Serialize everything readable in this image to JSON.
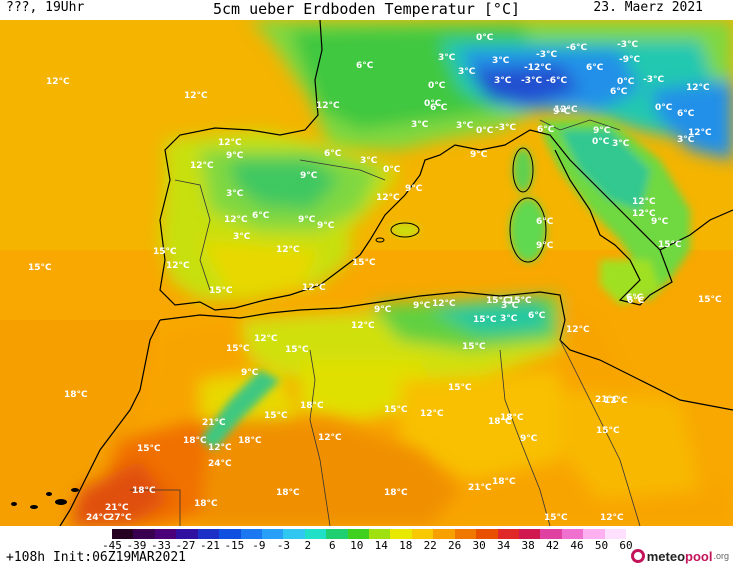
{
  "header": {
    "left": "???, 19Uhr",
    "title": "5cm ueber Erdboden Temperatur [°C]",
    "date": "23. Maerz 2021"
  },
  "footer": {
    "init": "+108h Init:06Z19MAR2021",
    "logo_main": "meteo",
    "logo_accent": "pool",
    "logo_suffix": ".org"
  },
  "scale": {
    "ticks": [
      "-45",
      "-39",
      "-33",
      "-27",
      "-21",
      "-15",
      "-9",
      "-3",
      "2",
      "6",
      "10",
      "14",
      "18",
      "22",
      "26",
      "30",
      "34",
      "38",
      "42",
      "46",
      "50",
      "60"
    ],
    "colors": [
      "#250020",
      "#3a0050",
      "#4a0078",
      "#3010a0",
      "#1c30c8",
      "#1050e0",
      "#1c78f0",
      "#28a0f8",
      "#30c8f0",
      "#20e0c8",
      "#20d070",
      "#40d020",
      "#a0e010",
      "#e8e800",
      "#f8c800",
      "#f8a000",
      "#f07800",
      "#e85000",
      "#e02828",
      "#d01850",
      "#e040a0",
      "#f070d0",
      "#ffb0f0",
      "#ffe0ff"
    ]
  },
  "labels": [
    {
      "t": "9°C"
    },
    {
      "t": "6°C"
    },
    {
      "t": "12°C"
    },
    {
      "t": "12°C"
    },
    {
      "t": "12°C"
    },
    {
      "t": "3°C"
    },
    {
      "t": "0°C"
    },
    {
      "t": "3°C"
    },
    {
      "t": "3°C"
    },
    {
      "t": "0°C"
    },
    {
      "t": "-3°C"
    },
    {
      "t": "-6°C"
    },
    {
      "t": "-3°C"
    },
    {
      "t": "-9°C"
    },
    {
      "t": "6°C"
    },
    {
      "t": "-12°C"
    },
    {
      "t": "3°C"
    },
    {
      "t": "-3°C"
    },
    {
      "t": "-6°C"
    },
    {
      "t": "0°C"
    },
    {
      "t": "-3°C"
    },
    {
      "t": "3°C"
    },
    {
      "t": "0°C"
    },
    {
      "t": "6°C"
    },
    {
      "t": "0°C"
    },
    {
      "t": "-3°C"
    },
    {
      "t": "3°C"
    },
    {
      "t": "6°C"
    },
    {
      "t": "0°C"
    },
    {
      "t": "3°C"
    },
    {
      "t": "3°C"
    },
    {
      "t": "9°C"
    },
    {
      "t": "6°C"
    },
    {
      "t": "0°C"
    },
    {
      "t": "6°C"
    },
    {
      "t": "12°C"
    },
    {
      "t": "9°C"
    },
    {
      "t": "12°C"
    },
    {
      "t": "9°C"
    },
    {
      "t": "6°C"
    },
    {
      "t": "3°C"
    },
    {
      "t": "0°C"
    },
    {
      "t": "9°C"
    },
    {
      "t": "12°C"
    },
    {
      "t": "9°C"
    },
    {
      "t": "12°C"
    },
    {
      "t": "3°C"
    },
    {
      "t": "9°C"
    },
    {
      "t": "12°C"
    },
    {
      "t": "6°C"
    },
    {
      "t": "9°C"
    },
    {
      "t": "3°C"
    },
    {
      "t": "6°C"
    },
    {
      "t": "12°C"
    },
    {
      "t": "9°C"
    },
    {
      "t": "12°C"
    },
    {
      "t": "12°C"
    },
    {
      "t": "15°C"
    },
    {
      "t": "15°C"
    },
    {
      "t": "15°C"
    },
    {
      "t": "12°C"
    },
    {
      "t": "12°C"
    },
    {
      "t": "15°C"
    },
    {
      "t": "9°C"
    },
    {
      "t": "12°C"
    },
    {
      "t": "15°C"
    },
    {
      "t": "6°C"
    },
    {
      "t": "9°C"
    },
    {
      "t": "12°C"
    },
    {
      "t": "6°C"
    },
    {
      "t": "15°C"
    },
    {
      "t": "9°C"
    },
    {
      "t": "3°C"
    },
    {
      "t": "6°C"
    },
    {
      "t": "3°C"
    },
    {
      "t": "9°C"
    },
    {
      "t": "12°C"
    },
    {
      "t": "15°C"
    },
    {
      "t": "15°C"
    },
    {
      "t": "12°C"
    },
    {
      "t": "15°C"
    },
    {
      "t": "18°C"
    },
    {
      "t": "12°C"
    },
    {
      "t": "15°C"
    },
    {
      "t": "12°C"
    },
    {
      "t": "15°C"
    },
    {
      "t": "15°C"
    },
    {
      "t": "15°C"
    },
    {
      "t": "15°C"
    },
    {
      "t": "12°C"
    },
    {
      "t": "18°C"
    },
    {
      "t": "9°C"
    },
    {
      "t": "21°C"
    },
    {
      "t": "15°C"
    },
    {
      "t": "21°C"
    },
    {
      "t": "18°C"
    },
    {
      "t": "12°C"
    },
    {
      "t": "18°C"
    },
    {
      "t": "15°C"
    },
    {
      "t": "15°C"
    },
    {
      "t": "9°C"
    },
    {
      "t": "18°C"
    },
    {
      "t": "24°C"
    },
    {
      "t": "18°C"
    },
    {
      "t": "18°C"
    },
    {
      "t": "12°C"
    },
    {
      "t": "12°C"
    },
    {
      "t": "18°C"
    },
    {
      "t": "21°C"
    },
    {
      "t": "18°C"
    },
    {
      "t": "18°C"
    },
    {
      "t": "18°C"
    },
    {
      "t": "21°C"
    },
    {
      "t": "24°C"
    },
    {
      "t": "27°C"
    },
    {
      "t": "15°C"
    },
    {
      "t": "12°C"
    }
  ]
}
